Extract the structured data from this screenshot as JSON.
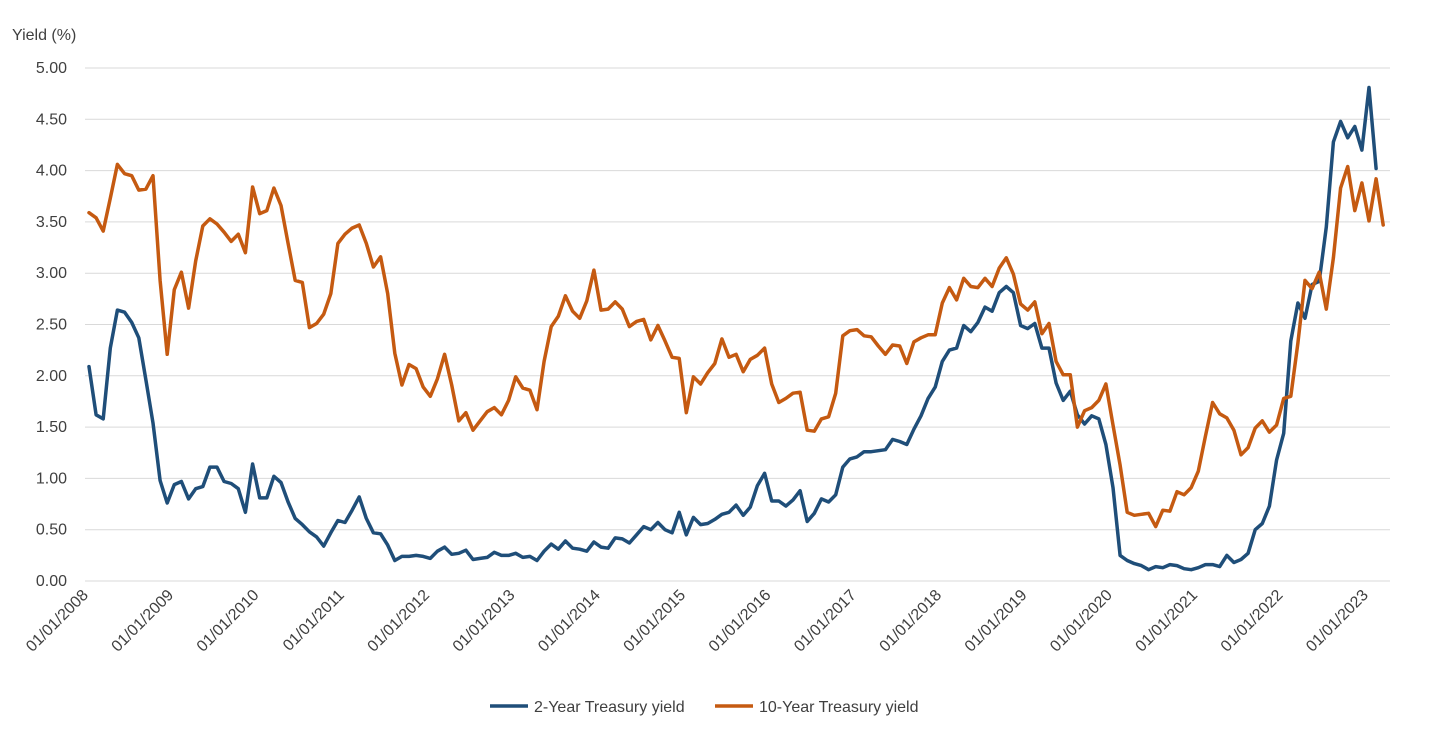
{
  "chart_data": {
    "type": "line",
    "ylabel": "Yield (%)",
    "ylim": [
      0,
      5
    ],
    "yticks": [
      "0.00",
      "0.50",
      "1.00",
      "1.50",
      "2.00",
      "2.50",
      "3.00",
      "3.50",
      "4.00",
      "4.50",
      "5.00"
    ],
    "xticks": [
      "01/01/2008",
      "01/01/2009",
      "01/01/2010",
      "01/01/2011",
      "01/01/2012",
      "01/01/2013",
      "01/01/2014",
      "01/01/2015",
      "01/01/2016",
      "01/01/2017",
      "01/01/2018",
      "01/01/2019",
      "01/01/2020",
      "01/01/2021",
      "01/01/2022",
      "01/01/2023"
    ],
    "x_start": "01/01/2008",
    "x_end": "01/04/2023",
    "grid": "horizontal",
    "legend_position": "bottom",
    "series": [
      {
        "name": "2-Year Treasury yield",
        "color": "#1f4e79",
        "values": [
          2.09,
          1.62,
          1.58,
          2.27,
          2.64,
          2.62,
          2.52,
          2.37,
          1.96,
          1.54,
          0.98,
          0.76,
          0.94,
          0.97,
          0.8,
          0.9,
          0.92,
          1.11,
          1.11,
          0.97,
          0.95,
          0.9,
          0.67,
          1.14,
          0.81,
          0.81,
          1.02,
          0.96,
          0.77,
          0.61,
          0.55,
          0.48,
          0.43,
          0.34,
          0.47,
          0.59,
          0.57,
          0.69,
          0.82,
          0.61,
          0.47,
          0.46,
          0.35,
          0.2,
          0.24,
          0.24,
          0.25,
          0.24,
          0.22,
          0.29,
          0.33,
          0.26,
          0.27,
          0.3,
          0.21,
          0.22,
          0.23,
          0.28,
          0.25,
          0.25,
          0.27,
          0.23,
          0.24,
          0.2,
          0.29,
          0.36,
          0.31,
          0.39,
          0.32,
          0.31,
          0.29,
          0.38,
          0.33,
          0.32,
          0.42,
          0.41,
          0.37,
          0.45,
          0.53,
          0.5,
          0.57,
          0.5,
          0.47,
          0.67,
          0.45,
          0.62,
          0.55,
          0.56,
          0.6,
          0.65,
          0.67,
          0.74,
          0.64,
          0.72,
          0.93,
          1.05,
          0.78,
          0.78,
          0.73,
          0.79,
          0.88,
          0.58,
          0.66,
          0.8,
          0.77,
          0.84,
          1.11,
          1.19,
          1.21,
          1.26,
          1.26,
          1.27,
          1.28,
          1.38,
          1.36,
          1.33,
          1.48,
          1.61,
          1.78,
          1.89,
          2.14,
          2.25,
          2.27,
          2.49,
          2.43,
          2.52,
          2.67,
          2.63,
          2.81,
          2.87,
          2.81,
          2.49,
          2.46,
          2.51,
          2.27,
          2.27,
          1.93,
          1.76,
          1.85,
          1.62,
          1.53,
          1.61,
          1.58,
          1.33,
          0.91,
          0.25,
          0.2,
          0.17,
          0.15,
          0.11,
          0.14,
          0.13,
          0.16,
          0.15,
          0.12,
          0.11,
          0.13,
          0.16,
          0.16,
          0.14,
          0.25,
          0.18,
          0.21,
          0.27,
          0.5,
          0.56,
          0.73,
          1.18,
          1.44,
          2.34,
          2.71,
          2.56,
          2.89,
          2.92,
          3.45,
          4.28,
          4.48,
          4.32,
          4.43,
          4.2,
          4.81,
          4.02
        ]
      },
      {
        "name": "10-Year Treasury yield",
        "color": "#c55a11",
        "values": [
          3.59,
          3.54,
          3.41,
          3.73,
          4.06,
          3.97,
          3.95,
          3.81,
          3.82,
          3.95,
          2.93,
          2.21,
          2.84,
          3.01,
          2.66,
          3.12,
          3.46,
          3.53,
          3.48,
          3.4,
          3.31,
          3.38,
          3.2,
          3.84,
          3.58,
          3.61,
          3.83,
          3.66,
          3.29,
          2.93,
          2.91,
          2.47,
          2.51,
          2.6,
          2.8,
          3.29,
          3.38,
          3.44,
          3.47,
          3.29,
          3.06,
          3.16,
          2.8,
          2.22,
          1.91,
          2.11,
          2.07,
          1.89,
          1.8,
          1.97,
          2.21,
          1.91,
          1.56,
          1.64,
          1.47,
          1.56,
          1.65,
          1.69,
          1.62,
          1.76,
          1.99,
          1.88,
          1.86,
          1.67,
          2.14,
          2.48,
          2.58,
          2.78,
          2.63,
          2.56,
          2.73,
          3.03,
          2.64,
          2.65,
          2.72,
          2.65,
          2.48,
          2.53,
          2.55,
          2.35,
          2.49,
          2.34,
          2.18,
          2.17,
          1.64,
          1.99,
          1.92,
          2.03,
          2.12,
          2.36,
          2.18,
          2.21,
          2.04,
          2.16,
          2.2,
          2.27,
          1.92,
          1.74,
          1.78,
          1.83,
          1.84,
          1.47,
          1.46,
          1.58,
          1.6,
          1.83,
          2.39,
          2.44,
          2.45,
          2.39,
          2.38,
          2.29,
          2.21,
          2.3,
          2.29,
          2.12,
          2.33,
          2.37,
          2.4,
          2.4,
          2.71,
          2.86,
          2.74,
          2.95,
          2.87,
          2.86,
          2.95,
          2.87,
          3.05,
          3.15,
          2.99,
          2.7,
          2.64,
          2.72,
          2.41,
          2.51,
          2.14,
          2.01,
          2.01,
          1.5,
          1.66,
          1.69,
          1.76,
          1.92,
          1.52,
          1.13,
          0.67,
          0.64,
          0.65,
          0.66,
          0.53,
          0.69,
          0.68,
          0.87,
          0.84,
          0.91,
          1.07,
          1.41,
          1.74,
          1.63,
          1.59,
          1.47,
          1.23,
          1.3,
          1.49,
          1.56,
          1.45,
          1.52,
          1.78,
          1.8,
          2.32,
          2.93,
          2.85,
          3.01,
          2.65,
          3.15,
          3.83,
          4.04,
          3.61,
          3.88,
          3.51,
          3.92,
          3.47
        ]
      }
    ]
  }
}
